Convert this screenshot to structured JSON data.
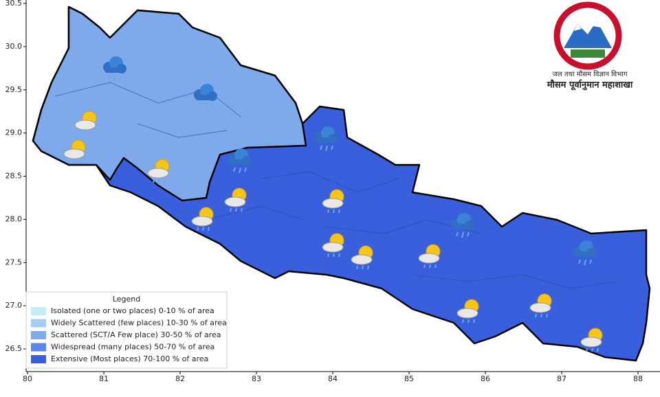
{
  "map": {
    "xlim": [
      79.982,
      88.27
    ],
    "ylim": [
      26.238,
      30.54
    ],
    "xticks": [
      80,
      81,
      82,
      83,
      84,
      85,
      86,
      87,
      88
    ],
    "yticks": [
      {
        "value": 26.5,
        "label": "26.5"
      },
      {
        "value": 27,
        "label": "27.0"
      },
      27.5,
      {
        "value": 28,
        "label": "28.0"
      },
      28.5,
      {
        "value": 29,
        "label": "29.0"
      },
      29.5,
      {
        "value": 30,
        "label": "30.0"
      },
      30.5
    ]
  },
  "legend": {
    "title": "Legend",
    "items": [
      {
        "label": "Isolated (one or two places)  0-10 % of area",
        "color": "#c6ecf7"
      },
      {
        "label": "Widely Scattered (few places)  10-30 % of area",
        "color": "#a3cdf2"
      },
      {
        "label": "Scattered (SCT/A Few place)  30-50 % of area",
        "color": "#7eaaeb"
      },
      {
        "label": "Widespread (many places)  50-70 % of area",
        "color": "#5d86e6"
      },
      {
        "label": "Extensive (Most places)  70-100 % of area",
        "color": "#3a5fdc"
      }
    ]
  },
  "logo": {
    "line1": "जल तथा मौसम विज्ञान विभाग",
    "line2": "मौसम पूर्वानुमान महाशाखा"
  }
}
